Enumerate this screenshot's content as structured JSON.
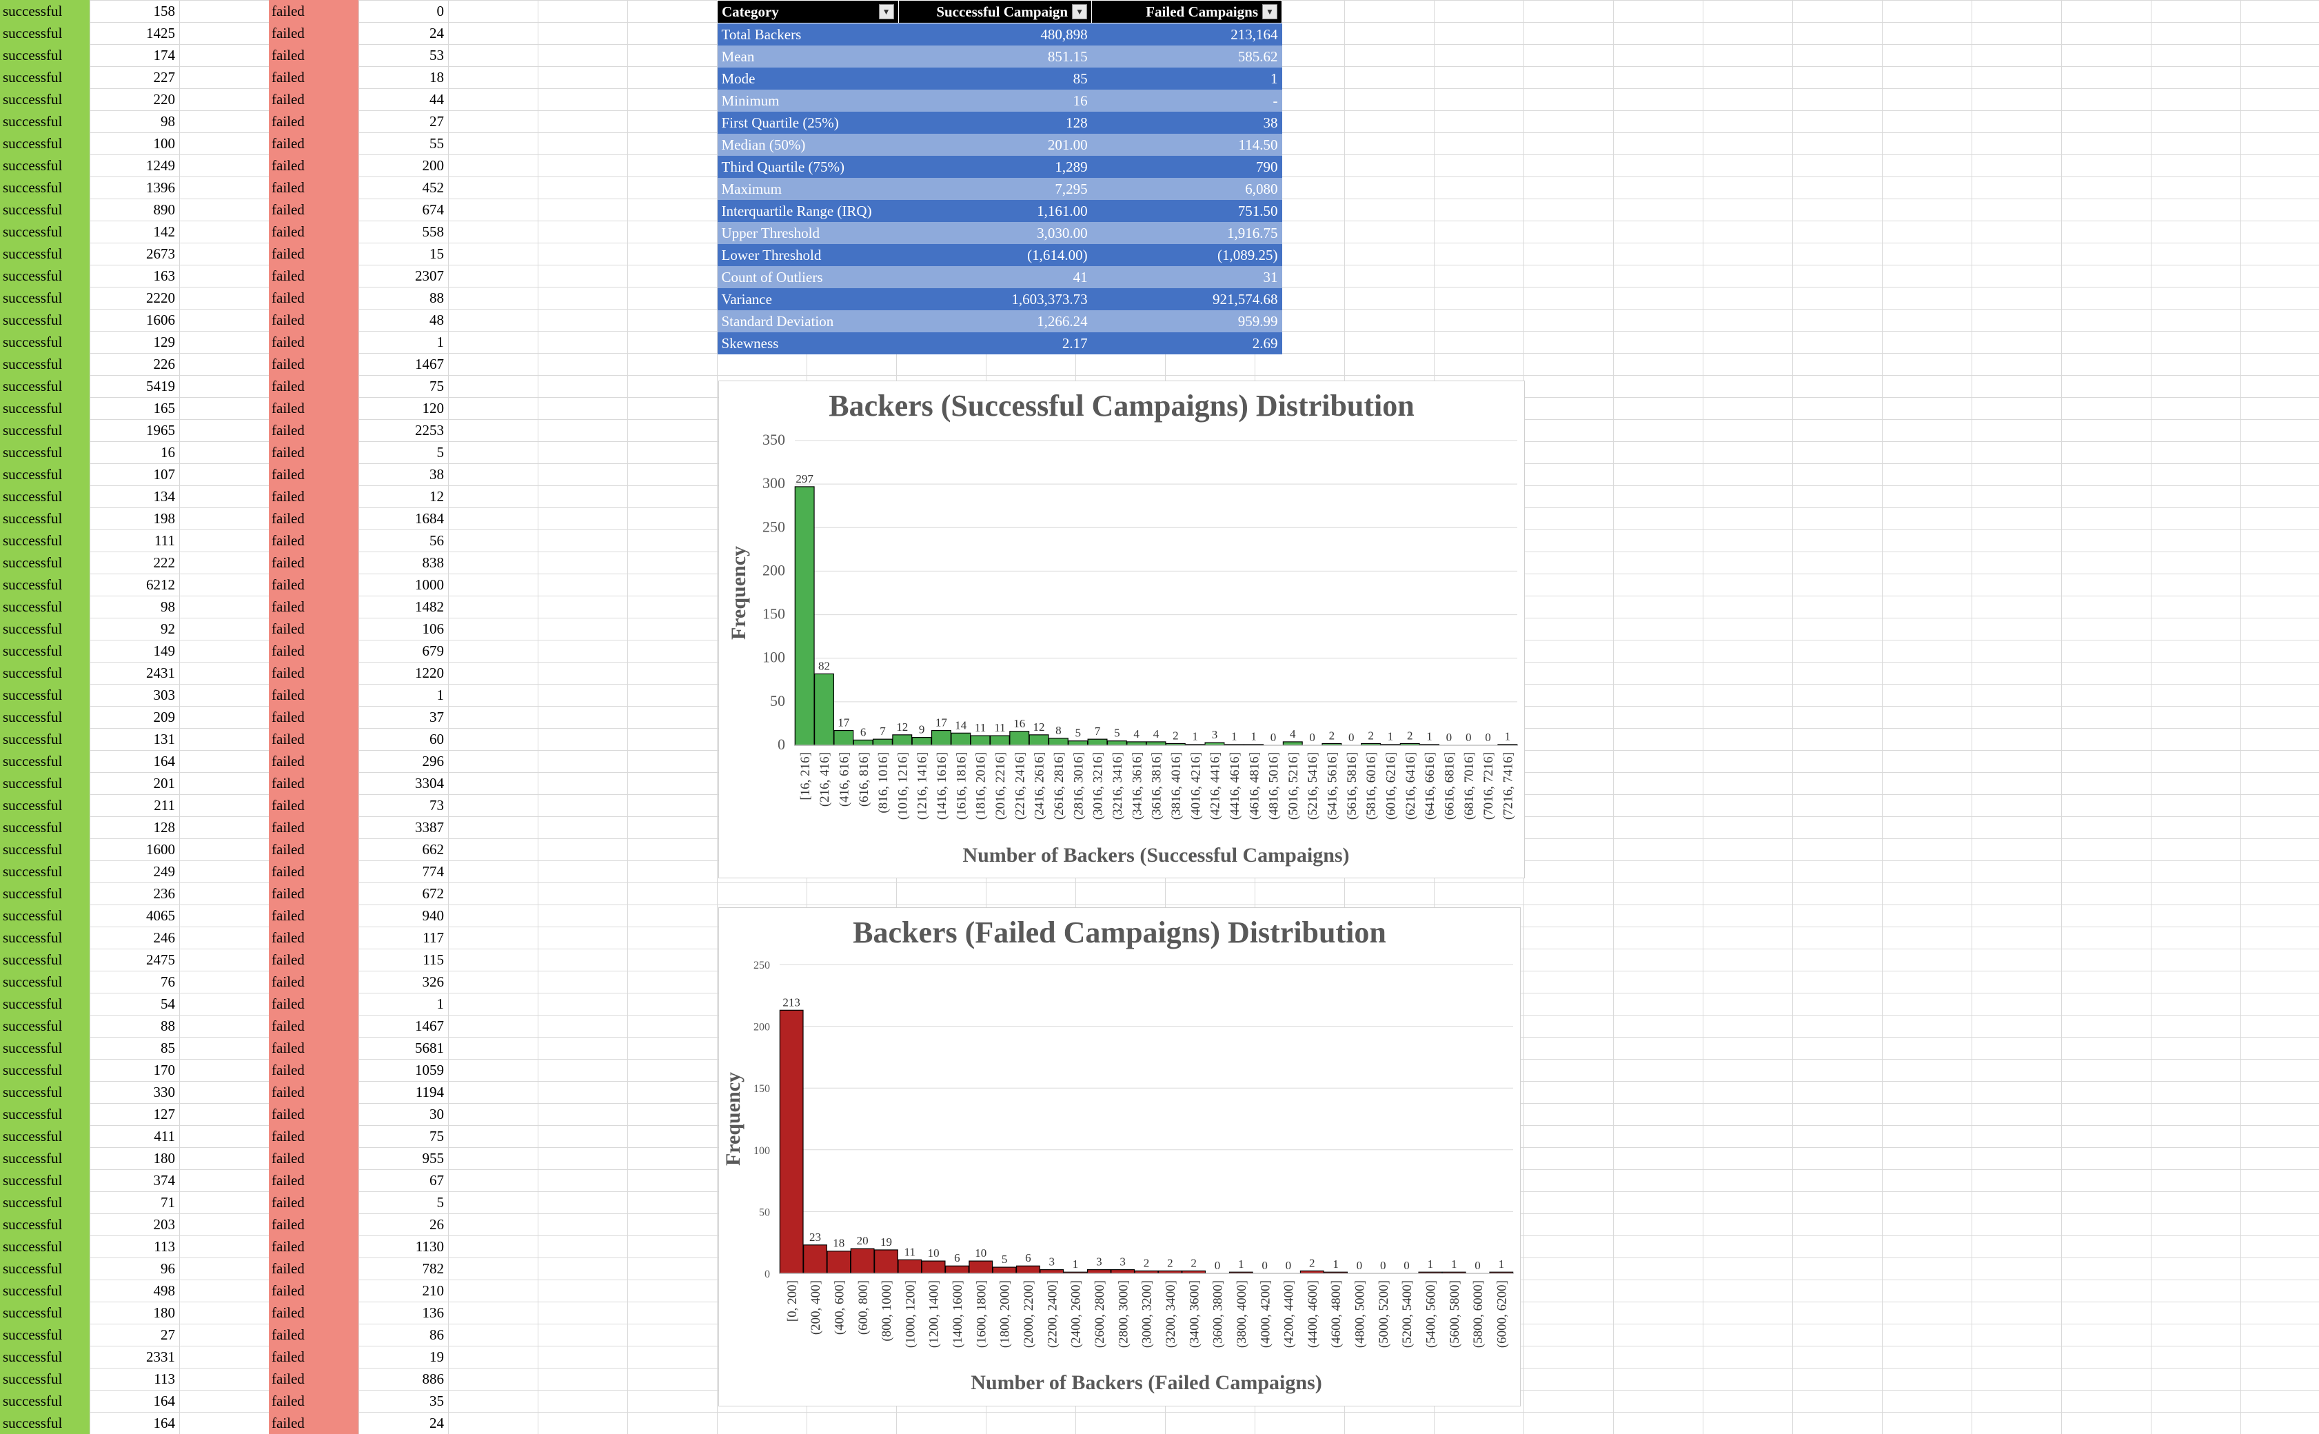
{
  "sheet_rows": {
    "col_a": [
      "successful",
      "successful",
      "successful",
      "successful",
      "successful",
      "successful",
      "successful",
      "successful",
      "successful",
      "successful",
      "successful",
      "successful",
      "successful",
      "successful",
      "successful",
      "successful",
      "successful",
      "successful",
      "successful",
      "successful",
      "successful",
      "successful",
      "successful",
      "successful",
      "successful",
      "successful",
      "successful",
      "successful",
      "successful",
      "successful",
      "successful",
      "successful",
      "successful",
      "successful",
      "successful",
      "successful",
      "successful",
      "successful",
      "successful",
      "successful",
      "successful",
      "successful",
      "successful",
      "successful",
      "successful",
      "successful",
      "successful",
      "successful",
      "successful",
      "successful",
      "successful",
      "successful",
      "successful",
      "successful",
      "successful",
      "successful",
      "successful",
      "successful",
      "successful",
      "successful",
      "successful",
      "successful",
      "successful",
      "successful",
      "successful"
    ],
    "col_b": [
      "158",
      "1425",
      "174",
      "227",
      "220",
      "98",
      "100",
      "1249",
      "1396",
      "890",
      "142",
      "2673",
      "163",
      "2220",
      "1606",
      "129",
      "226",
      "5419",
      "165",
      "1965",
      "16",
      "107",
      "134",
      "198",
      "111",
      "222",
      "6212",
      "98",
      "92",
      "149",
      "2431",
      "303",
      "209",
      "131",
      "164",
      "201",
      "211",
      "128",
      "1600",
      "249",
      "236",
      "4065",
      "246",
      "2475",
      "76",
      "54",
      "88",
      "85",
      "170",
      "330",
      "127",
      "411",
      "180",
      "374",
      "71",
      "203",
      "113",
      "96",
      "498",
      "180",
      "27",
      "2331",
      "113",
      "164",
      "164"
    ],
    "col_c": [
      "failed",
      "failed",
      "failed",
      "failed",
      "failed",
      "failed",
      "failed",
      "failed",
      "failed",
      "failed",
      "failed",
      "failed",
      "failed",
      "failed",
      "failed",
      "failed",
      "failed",
      "failed",
      "failed",
      "failed",
      "failed",
      "failed",
      "failed",
      "failed",
      "failed",
      "failed",
      "failed",
      "failed",
      "failed",
      "failed",
      "failed",
      "failed",
      "failed",
      "failed",
      "failed",
      "failed",
      "failed",
      "failed",
      "failed",
      "failed",
      "failed",
      "failed",
      "failed",
      "failed",
      "failed",
      "failed",
      "failed",
      "failed",
      "failed",
      "failed",
      "failed",
      "failed",
      "failed",
      "failed",
      "failed",
      "failed",
      "failed",
      "failed",
      "failed",
      "failed",
      "failed",
      "failed",
      "failed",
      "failed",
      "failed"
    ],
    "col_d": [
      "0",
      "24",
      "53",
      "18",
      "44",
      "27",
      "55",
      "200",
      "452",
      "674",
      "558",
      "15",
      "2307",
      "88",
      "48",
      "1",
      "1467",
      "75",
      "120",
      "2253",
      "5",
      "38",
      "12",
      "1684",
      "56",
      "838",
      "1000",
      "1482",
      "106",
      "679",
      "1220",
      "1",
      "37",
      "60",
      "296",
      "3304",
      "73",
      "3387",
      "662",
      "774",
      "672",
      "940",
      "117",
      "115",
      "326",
      "1",
      "1467",
      "5681",
      "1059",
      "1194",
      "30",
      "75",
      "955",
      "67",
      "5",
      "26",
      "1130",
      "782",
      "210",
      "136",
      "86",
      "19",
      "886",
      "35",
      "24"
    ]
  },
  "stats_table": {
    "headers": [
      "Category",
      "Successful Campaign",
      "Failed Campaigns"
    ],
    "rows": [
      [
        "Total Backers",
        "480,898",
        "213,164"
      ],
      [
        "Mean",
        "851.15",
        "585.62"
      ],
      [
        "Mode",
        "85",
        "1"
      ],
      [
        "Minimum",
        "16",
        "-"
      ],
      [
        "First Quartile (25%)",
        "128",
        "38"
      ],
      [
        "Median (50%)",
        "201.00",
        "114.50"
      ],
      [
        "Third Quartile (75%)",
        "1,289",
        "790"
      ],
      [
        "Maximum",
        "7,295",
        "6,080"
      ],
      [
        "Interquartile Range (IRQ)",
        "1,161.00",
        "751.50"
      ],
      [
        "Upper Threshold",
        "3,030.00",
        "1,916.75"
      ],
      [
        "Lower Threshold",
        "(1,614.00)",
        "(1,089.25)"
      ],
      [
        "Count of Outliers",
        "41",
        "31"
      ],
      [
        "Variance",
        "1,603,373.73",
        "921,574.68"
      ],
      [
        "Standard Deviation",
        "1,266.24",
        "959.99"
      ],
      [
        "Skewness",
        "2.17",
        "2.69"
      ]
    ]
  },
  "chart_data": [
    {
      "type": "bar",
      "title": "Backers (Successful Campaigns) Distribution",
      "xlabel": "Number of Backers (Successful Campaigns)",
      "ylabel": "Frequency",
      "ylim": [
        0,
        350
      ],
      "yticks": [
        0,
        50,
        100,
        150,
        200,
        250,
        300,
        350
      ],
      "grid": true,
      "color": "#4caf50",
      "categories": [
        "[16, 216]",
        "(216, 416]",
        "(416, 616]",
        "(616, 816]",
        "(816, 1016]",
        "(1016, 1216]",
        "(1216, 1416]",
        "(1416, 1616]",
        "(1616, 1816]",
        "(1816, 2016]",
        "(2016, 2216]",
        "(2216, 2416]",
        "(2416, 2616]",
        "(2616, 2816]",
        "(2816, 3016]",
        "(3016, 3216]",
        "(3216, 3416]",
        "(3416, 3616]",
        "(3616, 3816]",
        "(3816, 4016]",
        "(4016, 4216]",
        "(4216, 4416]",
        "(4416, 4616]",
        "(4616, 4816]",
        "(4816, 5016]",
        "(5016, 5216]",
        "(5216, 5416]",
        "(5416, 5616]",
        "(5616, 5816]",
        "(5816, 6016]",
        "(6016, 6216]",
        "(6216, 6416]",
        "(6416, 6616]",
        "(6616, 6816]",
        "(6816, 7016]",
        "(7016, 7216]",
        "(7216, 7416]"
      ],
      "values": [
        297,
        82,
        17,
        6,
        7,
        12,
        9,
        17,
        14,
        11,
        11,
        16,
        12,
        8,
        5,
        7,
        5,
        4,
        4,
        2,
        1,
        3,
        1,
        1,
        0,
        4,
        0,
        2,
        0,
        2,
        1,
        2,
        1,
        0,
        0,
        0,
        1
      ]
    },
    {
      "type": "bar",
      "title": "Backers (Failed Campaigns) Distribution",
      "xlabel": "Number of Backers (Failed Campaigns)",
      "ylabel": "Frequency",
      "ylim": [
        0,
        250
      ],
      "yticks": [
        0,
        50,
        100,
        150,
        200,
        250
      ],
      "grid": true,
      "color": "#b22222",
      "categories": [
        "[0, 200]",
        "(200, 400]",
        "(400, 600]",
        "(600, 800]",
        "(800, 1000]",
        "(1000, 1200]",
        "(1200, 1400]",
        "(1400, 1600]",
        "(1600, 1800]",
        "(1800, 2000]",
        "(2000, 2200]",
        "(2200, 2400]",
        "(2400, 2600]",
        "(2600, 2800]",
        "(2800, 3000]",
        "(3000, 3200]",
        "(3200, 3400]",
        "(3400, 3600]",
        "(3600, 3800]",
        "(3800, 4000]",
        "(4000, 4200]",
        "(4200, 4400]",
        "(4400, 4600]",
        "(4600, 4800]",
        "(4800, 5000]",
        "(5000, 5200]",
        "(5200, 5400]",
        "(5400, 5600]",
        "(5600, 5800]",
        "(5800, 6000]",
        "(6000, 6200]"
      ],
      "values": [
        213,
        23,
        18,
        20,
        19,
        11,
        10,
        6,
        10,
        5,
        6,
        3,
        1,
        3,
        3,
        2,
        2,
        2,
        0,
        1,
        0,
        0,
        2,
        1,
        0,
        0,
        0,
        1,
        1,
        0,
        1
      ]
    }
  ]
}
